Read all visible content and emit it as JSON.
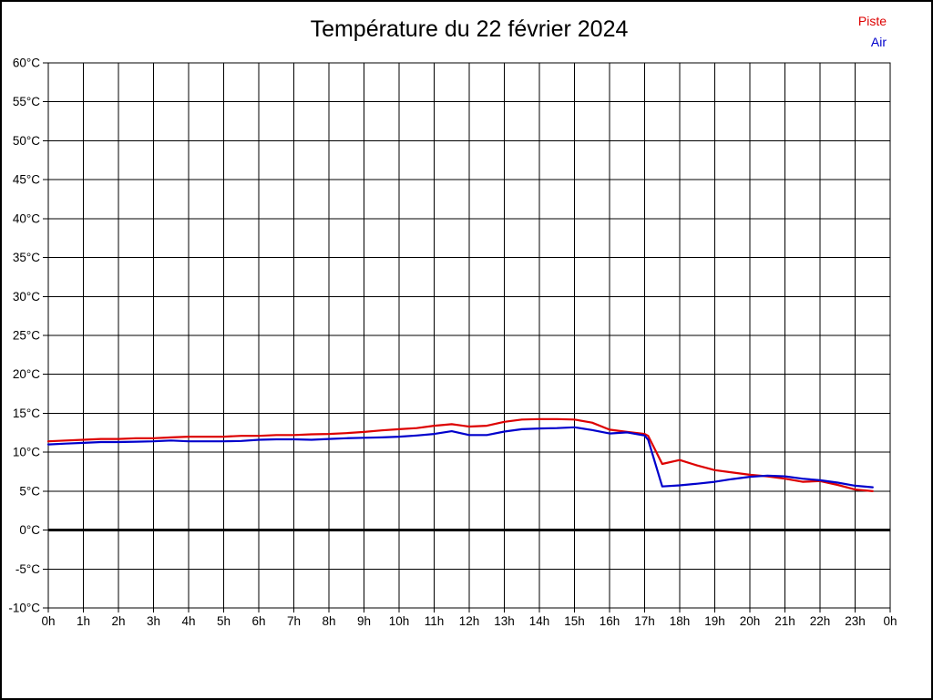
{
  "page": {
    "background": "#ffffff",
    "border_color": "#000000"
  },
  "legend": {
    "position": "top-right",
    "entries": [
      {
        "label": "Piste",
        "color": "#dd0000"
      },
      {
        "label": "Air",
        "color": "#0000cc"
      }
    ]
  },
  "chart_data": {
    "type": "line",
    "title": "Température du 22 février 2024",
    "xlabel": "",
    "ylabel": "",
    "x_unit": "hours",
    "xlim": [
      0,
      24
    ],
    "ylim": [
      -10,
      60
    ],
    "y_step": 5,
    "grid": "on-black-both-axes",
    "zero_line": {
      "value": 0,
      "color": "#000000",
      "width": 3
    },
    "y_tick_labels": [
      "60°C",
      "55°C",
      "50°C",
      "45°C",
      "40°C",
      "35°C",
      "30°C",
      "25°C",
      "20°C",
      "15°C",
      "10°C",
      "5°C",
      "0°C",
      "-5°C",
      "-10°C"
    ],
    "x_tick_labels": [
      "0h",
      "1h",
      "2h",
      "3h",
      "4h",
      "5h",
      "6h",
      "7h",
      "8h",
      "9h",
      "10h",
      "11h",
      "12h",
      "13h",
      "14h",
      "15h",
      "16h",
      "17h",
      "18h",
      "19h",
      "20h",
      "21h",
      "22h",
      "23h",
      "0h"
    ],
    "x": [
      0,
      0.5,
      1,
      1.5,
      2,
      2.5,
      3,
      3.5,
      4,
      4.5,
      5,
      5.5,
      6,
      6.5,
      7,
      7.5,
      8,
      8.5,
      9,
      9.5,
      10,
      10.5,
      11,
      11.5,
      12,
      12.5,
      13,
      13.5,
      14,
      14.5,
      15,
      15.5,
      16,
      16.5,
      17,
      17.1,
      17.5,
      18,
      18.5,
      19,
      19.5,
      20,
      20.5,
      21,
      21.5,
      22,
      22.5,
      23,
      23.5
    ],
    "series": [
      {
        "name": "Piste",
        "color": "#dd0000",
        "values": [
          11.4,
          11.5,
          11.6,
          11.7,
          11.7,
          11.8,
          11.8,
          11.9,
          12.0,
          12.0,
          12.0,
          12.1,
          12.1,
          12.2,
          12.2,
          12.3,
          12.35,
          12.45,
          12.6,
          12.8,
          12.95,
          13.1,
          13.4,
          13.6,
          13.3,
          13.4,
          13.9,
          14.2,
          14.25,
          14.25,
          14.2,
          13.8,
          12.9,
          12.6,
          12.35,
          12.1,
          8.5,
          9.0,
          8.3,
          7.7,
          7.4,
          7.1,
          6.9,
          6.6,
          6.2,
          6.3,
          5.8,
          5.2,
          5.0
        ]
      },
      {
        "name": "Air",
        "color": "#0000cc",
        "values": [
          11.0,
          11.1,
          11.2,
          11.3,
          11.3,
          11.35,
          11.4,
          11.5,
          11.4,
          11.4,
          11.4,
          11.45,
          11.6,
          11.65,
          11.65,
          11.6,
          11.7,
          11.8,
          11.85,
          11.9,
          12.0,
          12.15,
          12.35,
          12.7,
          12.2,
          12.2,
          12.65,
          12.95,
          13.05,
          13.1,
          13.2,
          12.85,
          12.4,
          12.55,
          12.15,
          11.6,
          5.6,
          5.75,
          5.95,
          6.2,
          6.55,
          6.85,
          7.0,
          6.9,
          6.6,
          6.4,
          6.1,
          5.7,
          5.5
        ]
      }
    ]
  }
}
